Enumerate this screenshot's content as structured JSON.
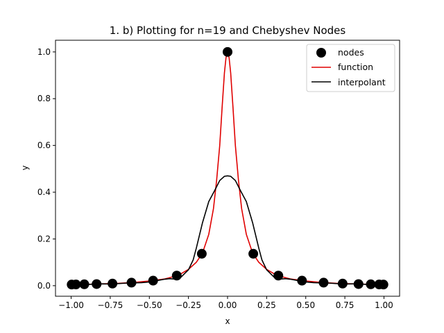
{
  "chart_data": {
    "type": "line",
    "title": "1. b) Plotting for n=19 and Chebyshev Nodes",
    "xlabel": "x",
    "ylabel": "y",
    "xlim": [
      -1.1,
      1.1
    ],
    "ylim": [
      -0.045,
      1.05
    ],
    "xticks": [
      -1.0,
      -0.75,
      -0.5,
      -0.25,
      0.0,
      0.25,
      0.5,
      0.75,
      1.0
    ],
    "xtick_labels": [
      "−1.00",
      "−0.75",
      "−0.50",
      "−0.25",
      "0.00",
      "0.25",
      "0.50",
      "0.75",
      "1.00"
    ],
    "yticks": [
      0.0,
      0.2,
      0.4,
      0.6,
      0.8,
      1.0
    ],
    "ytick_labels": [
      "0.0",
      "0.2",
      "0.4",
      "0.6",
      "0.8",
      "1.0"
    ],
    "legend_position": "top-right",
    "series": [
      {
        "name": "nodes",
        "kind": "scatter",
        "color": "#000000",
        "x": [
          -0.9966,
          -0.9694,
          -0.9158,
          -0.8372,
          -0.7357,
          -0.6142,
          -0.4759,
          -0.3247,
          -0.1646,
          0.0,
          0.1646,
          0.3247,
          0.4759,
          0.6142,
          0.7357,
          0.8372,
          0.9158,
          0.9694,
          0.9966
        ],
        "y": [
          0.005,
          0.0054,
          0.006,
          0.0071,
          0.0091,
          0.0131,
          0.0217,
          0.0433,
          0.1366,
          1.0,
          0.1366,
          0.0433,
          0.0217,
          0.0131,
          0.0091,
          0.0071,
          0.006,
          0.0054,
          0.005
        ]
      },
      {
        "name": "function",
        "kind": "line",
        "color": "#e00000",
        "x": [
          -1.0,
          -0.9,
          -0.8,
          -0.7,
          -0.6,
          -0.5,
          -0.4,
          -0.35,
          -0.3,
          -0.25,
          -0.2,
          -0.16,
          -0.12,
          -0.09,
          -0.07,
          -0.05,
          -0.035,
          -0.02,
          -0.01,
          0.0,
          0.01,
          0.02,
          0.035,
          0.05,
          0.07,
          0.09,
          0.12,
          0.16,
          0.2,
          0.25,
          0.3,
          0.35,
          0.4,
          0.5,
          0.6,
          0.7,
          0.8,
          0.9,
          1.0
        ],
        "y": [
          0.005,
          0.006,
          0.008,
          0.01,
          0.014,
          0.02,
          0.029,
          0.038,
          0.05,
          0.07,
          0.1,
          0.14,
          0.22,
          0.33,
          0.45,
          0.6,
          0.76,
          0.91,
          0.975,
          1.0,
          0.975,
          0.91,
          0.76,
          0.6,
          0.45,
          0.33,
          0.22,
          0.14,
          0.1,
          0.07,
          0.05,
          0.038,
          0.029,
          0.02,
          0.014,
          0.01,
          0.008,
          0.006,
          0.005
        ]
      },
      {
        "name": "interpolant",
        "kind": "line",
        "color": "#000000",
        "x": [
          -1.0,
          -0.95,
          -0.9,
          -0.85,
          -0.8,
          -0.75,
          -0.7,
          -0.65,
          -0.6,
          -0.55,
          -0.5,
          -0.45,
          -0.4,
          -0.37,
          -0.35,
          -0.32,
          -0.3,
          -0.27,
          -0.25,
          -0.22,
          -0.2,
          -0.16,
          -0.12,
          -0.08,
          -0.05,
          -0.02,
          0.0,
          0.02,
          0.05,
          0.08,
          0.12,
          0.16,
          0.2,
          0.22,
          0.25,
          0.27,
          0.3,
          0.32,
          0.35,
          0.37,
          0.4,
          0.45,
          0.5,
          0.55,
          0.6,
          0.65,
          0.7,
          0.75,
          0.8,
          0.85,
          0.9,
          0.95,
          1.0
        ],
        "y": [
          0.005,
          0.006,
          0.005,
          0.007,
          0.008,
          0.007,
          0.009,
          0.011,
          0.012,
          0.013,
          0.016,
          0.022,
          0.028,
          0.03,
          0.029,
          0.028,
          0.035,
          0.055,
          0.068,
          0.11,
          0.16,
          0.27,
          0.36,
          0.41,
          0.45,
          0.468,
          0.47,
          0.468,
          0.45,
          0.41,
          0.36,
          0.27,
          0.16,
          0.11,
          0.068,
          0.055,
          0.035,
          0.028,
          0.029,
          0.03,
          0.028,
          0.022,
          0.016,
          0.013,
          0.012,
          0.011,
          0.009,
          0.007,
          0.008,
          0.007,
          0.005,
          0.006,
          0.005
        ]
      }
    ]
  }
}
